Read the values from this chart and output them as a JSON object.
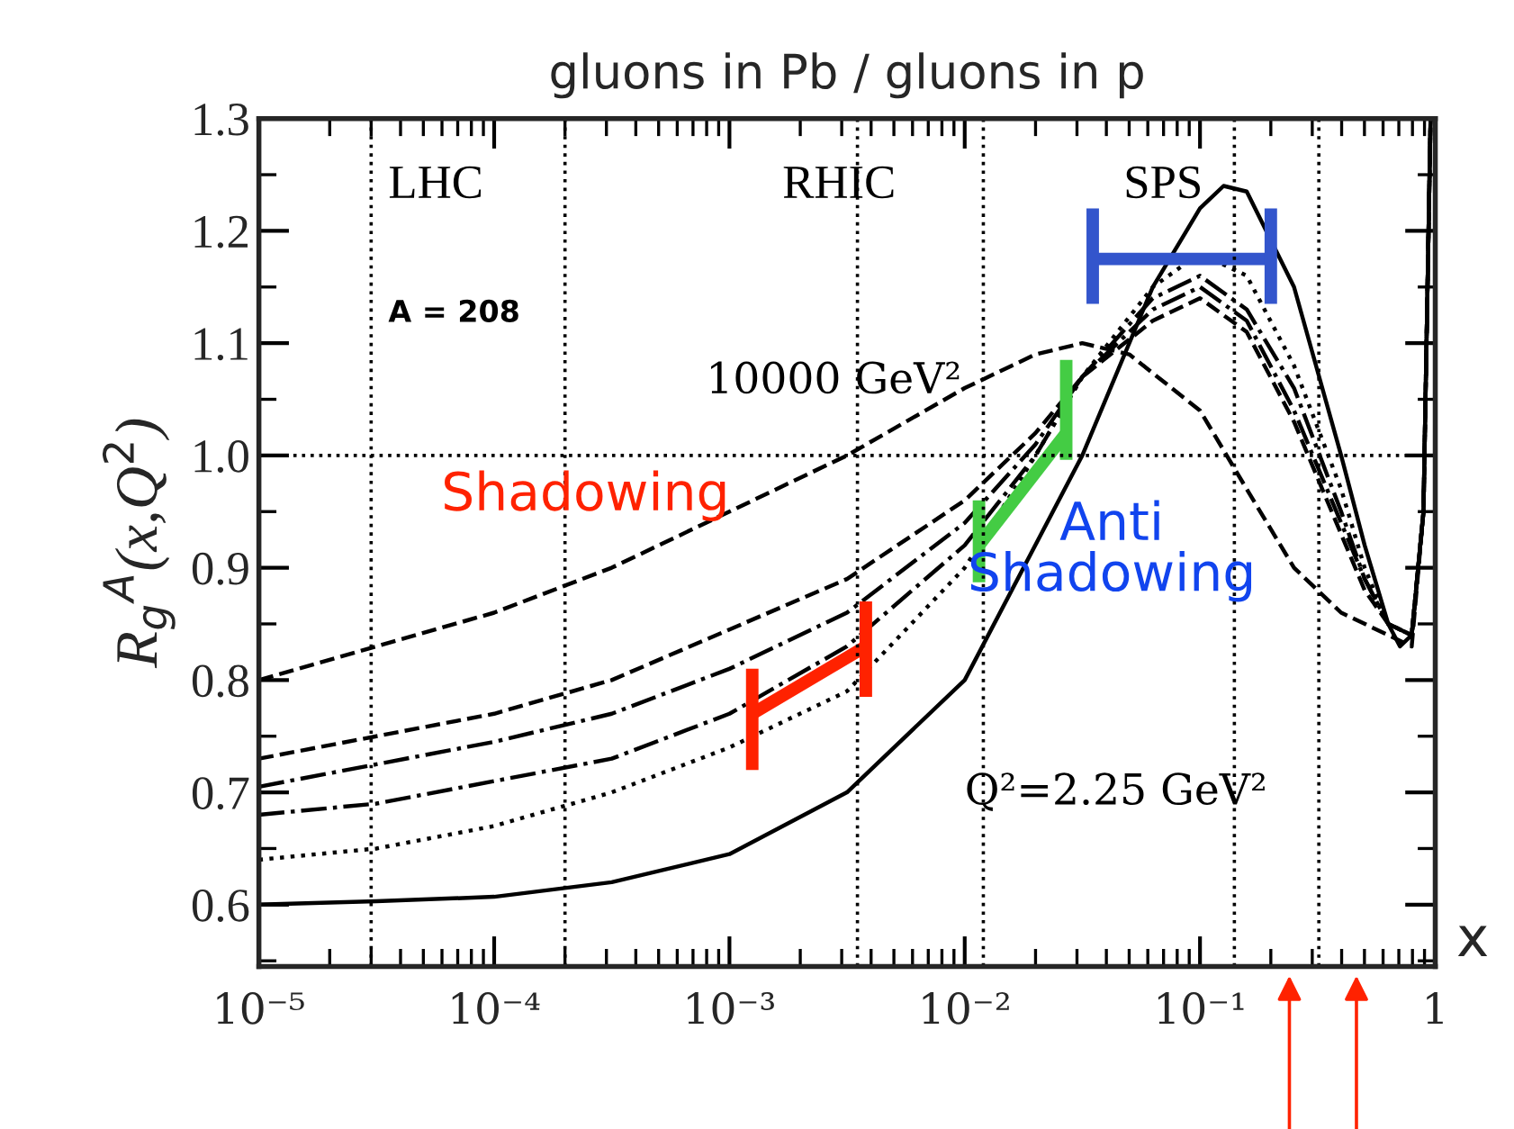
{
  "chart_data": {
    "type": "line",
    "title": "gluons in Pb / gluons in p",
    "xlabel": "x",
    "ylabel": "R$_{g}$$^{A}$(x,Q$^{2}$)",
    "log": "x",
    "xlim": [
      1e-05,
      1
    ],
    "ylim": [
      0.545,
      1.3
    ],
    "xticks": [
      {
        "value": 1e-05,
        "label": "10⁻⁵"
      },
      {
        "value": 0.0001,
        "label": "10⁻⁴"
      },
      {
        "value": 0.001,
        "label": "10⁻³"
      },
      {
        "value": 0.01,
        "label": "10⁻²"
      },
      {
        "value": 0.1,
        "label": "10⁻¹"
      },
      1
    ],
    "yticks": [
      {
        "value": 0.6,
        "label": "0.6"
      },
      {
        "value": 0.7,
        "label": "0.7"
      },
      {
        "value": 0.8,
        "label": "0.8"
      },
      {
        "value": 0.9,
        "label": "0.9"
      },
      {
        "value": 1.0,
        "label": "1.0"
      },
      {
        "value": 1.1,
        "label": "1.1"
      },
      {
        "value": 1.2,
        "label": "1.2"
      },
      {
        "value": 1.3,
        "label": "1.3"
      }
    ],
    "grid": false,
    "legend": false,
    "marker": "none",
    "series": [
      {
        "color": "#000000",
        "line_style": "solid",
        "x": [
          1e-05,
          3.16e-05,
          0.0001,
          0.000316,
          0.001,
          0.00316,
          0.01,
          0.0316,
          0.063,
          0.1,
          0.126,
          0.158,
          0.251,
          0.398,
          0.501,
          0.631,
          0.708,
          0.794,
          0.891,
          0.955
        ],
        "values": [
          0.6,
          0.603,
          0.607,
          0.62,
          0.645,
          0.7,
          0.8,
          1.0,
          1.15,
          1.22,
          1.24,
          1.235,
          1.15,
          1.0,
          0.92,
          0.85,
          0.83,
          0.84,
          0.95,
          1.3
        ]
      },
      {
        "color": "#000000",
        "line_style": "dotted",
        "x": [
          1e-05,
          3.16e-05,
          0.0001,
          0.000316,
          0.001,
          0.00316,
          0.01,
          0.02,
          0.0316,
          0.063,
          0.1,
          0.158,
          0.251,
          0.398,
          0.501,
          0.631,
          0.794,
          0.891,
          0.955
        ],
        "values": [
          0.64,
          0.65,
          0.67,
          0.7,
          0.74,
          0.79,
          0.9,
          1.0,
          1.07,
          1.15,
          1.18,
          1.16,
          1.08,
          0.97,
          0.9,
          0.85,
          0.84,
          0.95,
          1.3
        ]
      },
      {
        "color": "#000000",
        "line_style": "dashdot",
        "x": [
          1e-05,
          3.16e-05,
          0.0001,
          0.000316,
          0.001,
          0.00316,
          0.01,
          0.02,
          0.0316,
          0.063,
          0.1,
          0.158,
          0.251,
          0.398,
          0.501,
          0.631,
          0.794,
          0.891,
          0.955
        ],
        "values": [
          0.68,
          0.69,
          0.71,
          0.73,
          0.77,
          0.83,
          0.92,
          1.0,
          1.07,
          1.14,
          1.16,
          1.13,
          1.06,
          0.95,
          0.89,
          0.85,
          0.84,
          0.95,
          1.3
        ]
      },
      {
        "color": "#000000",
        "line_style": "dashdot",
        "x": [
          1e-05,
          3.16e-05,
          0.0001,
          0.000316,
          0.001,
          0.00316,
          0.01,
          0.02,
          0.0316,
          0.063,
          0.1,
          0.158,
          0.251,
          0.398,
          0.501,
          0.631,
          0.794,
          0.891,
          0.955
        ],
        "values": [
          0.705,
          0.725,
          0.745,
          0.77,
          0.81,
          0.86,
          0.94,
          1.01,
          1.07,
          1.13,
          1.15,
          1.12,
          1.04,
          0.94,
          0.89,
          0.85,
          0.84,
          0.95,
          1.3
        ]
      },
      {
        "color": "#000000",
        "line_style": "dashed",
        "x": [
          1e-05,
          3.16e-05,
          0.0001,
          0.000316,
          0.001,
          0.00316,
          0.01,
          0.02,
          0.0316,
          0.063,
          0.1,
          0.158,
          0.251,
          0.398,
          0.501,
          0.631,
          0.794,
          0.891,
          0.955
        ],
        "values": [
          0.73,
          0.75,
          0.77,
          0.8,
          0.845,
          0.89,
          0.96,
          1.02,
          1.07,
          1.12,
          1.14,
          1.11,
          1.03,
          0.93,
          0.88,
          0.85,
          0.84,
          0.95,
          1.3
        ]
      },
      {
        "color": "#000000",
        "line_style": "dashed",
        "x": [
          1e-05,
          3.16e-05,
          0.0001,
          0.000316,
          0.001,
          0.00316,
          0.01,
          0.02,
          0.0316,
          0.05,
          0.1,
          0.158,
          0.251,
          0.398,
          0.631,
          0.794,
          0.891,
          0.955
        ],
        "values": [
          0.8,
          0.83,
          0.86,
          0.9,
          0.95,
          1.0,
          1.06,
          1.09,
          1.1,
          1.09,
          1.04,
          0.97,
          0.9,
          0.86,
          0.84,
          0.83,
          0.95,
          1.3
        ]
      },
      {
        "color": "#ff2200",
        "line_style": "solid",
        "x": [
          0.00125,
          0.0038
        ],
        "values": [
          0.77,
          0.83
        ],
        "errors": [
          [
            0.72,
            0.81
          ],
          [
            0.785,
            0.87
          ]
        ]
      },
      {
        "color": "#44cc44",
        "line_style": "solid",
        "x": [
          0.0115,
          0.027
        ],
        "values": [
          0.92,
          1.02
        ],
        "errors": [
          [
            0.887,
            0.96
          ],
          [
            0.996,
            1.085
          ]
        ]
      },
      {
        "color": "#3355cc",
        "line_style": "solid",
        "x": [
          0.035,
          0.2
        ],
        "values": [
          1.175,
          1.175
        ],
        "errors": [
          [
            1.135,
            1.22
          ],
          [
            1.135,
            1.22
          ]
        ]
      }
    ],
    "ref_lines": [
      {
        "axis": "x",
        "value": 3e-05,
        "color": "#000000",
        "line_style": "dotted"
      },
      {
        "axis": "x",
        "value": 0.0002,
        "color": "#000000",
        "line_style": "dotted"
      },
      {
        "axis": "x",
        "value": 0.0035,
        "color": "#000000",
        "line_style": "dotted"
      },
      {
        "axis": "x",
        "value": 0.012,
        "color": "#000000",
        "line_style": "dotted"
      },
      {
        "axis": "x",
        "value": 0.14,
        "color": "#000000",
        "line_style": "dotted"
      },
      {
        "axis": "x",
        "value": 0.32,
        "color": "#000000",
        "line_style": "dotted"
      },
      {
        "axis": "y",
        "value": 1.0,
        "color": "#000000",
        "line_style": "dotted"
      }
    ],
    "annotations": [
      "LHC",
      "RHIC",
      "SPS",
      "A = 208",
      "10000 GeV²",
      "Shadowing",
      "Anti\nShadowing",
      "Q²=2.25 GeV²"
    ]
  }
}
